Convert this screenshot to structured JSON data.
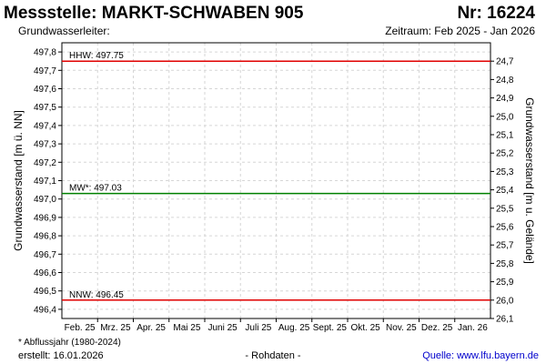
{
  "header": {
    "title": "Messstelle: MARKT-SCHWABEN 905",
    "number": "Nr: 16224",
    "aquifer": "Grundwasserleiter:",
    "period": "Zeitraum: Feb 2025 - Jan 2026"
  },
  "footer": {
    "footnote": "* Abflussjahr (1980-2024)",
    "created": "erstellt:  16.01.2026",
    "rawdata": "- Rohdaten -",
    "source": "Quelle:  www.lfu.bayern.de"
  },
  "colors": {
    "extreme_line": "#e00000",
    "mean_line": "#008000",
    "grid": "#d6d6d6",
    "source_link": "#0000cc"
  },
  "chart_data": {
    "type": "line",
    "xlabel": "",
    "ylabel": "Grundwasserstand [m ü. NN]",
    "y2label": "Grundwasserstand [m u. Gelände]",
    "ylim": [
      496.35,
      497.85
    ],
    "y_ticks": [
      496.4,
      496.5,
      496.6,
      496.7,
      496.8,
      496.9,
      497.0,
      497.1,
      497.2,
      497.3,
      497.4,
      497.5,
      497.6,
      497.7,
      497.8
    ],
    "y_tick_labels": [
      "496,4",
      "496,5",
      "496,6",
      "496,7",
      "496,8",
      "496,9",
      "497,0",
      "497,1",
      "497,2",
      "497,3",
      "497,4",
      "497,5",
      "497,6",
      "497,7",
      "497,8"
    ],
    "y2_ticks": [
      24.7,
      24.8,
      24.9,
      25.0,
      25.1,
      25.2,
      25.3,
      25.4,
      25.5,
      25.6,
      25.7,
      25.8,
      25.9,
      26.0,
      26.1
    ],
    "y2_tick_labels": [
      "24,7",
      "24,8",
      "24,9",
      "25,0",
      "25,1",
      "25,2",
      "25,3",
      "25,4",
      "25,5",
      "25,6",
      "25,7",
      "25,8",
      "25,9",
      "26,0",
      "26,1"
    ],
    "y2_reference_level": 522.45,
    "x_ticks": [
      "Feb. 25",
      "Mrz. 25",
      "Apr. 25",
      "Mai 25",
      "Juni 25",
      "Juli 25",
      "Aug. 25",
      "Sept. 25",
      "Okt. 25",
      "Nov. 25",
      "Dez. 25",
      "Jan. 26"
    ],
    "grid": true,
    "reference_lines": [
      {
        "label": "HHW: 497.75",
        "value": 497.75,
        "color": "#e00000"
      },
      {
        "label": "MW*: 497.03",
        "value": 497.03,
        "color": "#008000"
      },
      {
        "label": "NNW: 496.45",
        "value": 496.45,
        "color": "#e00000"
      }
    ],
    "series": []
  }
}
